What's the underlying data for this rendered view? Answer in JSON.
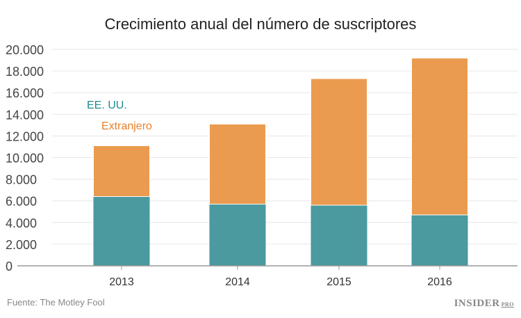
{
  "chart_data": {
    "type": "bar",
    "stacked": true,
    "title": "Crecimiento anual del número de suscriptores",
    "categories": [
      "2013",
      "2014",
      "2015",
      "2016"
    ],
    "series": [
      {
        "name": "EE. UU.",
        "color": "#4a9a9f",
        "values": [
          6400,
          5700,
          5600,
          4700
        ]
      },
      {
        "name": "Extranjero",
        "color": "#eb9b4f",
        "values": [
          4700,
          7400,
          11700,
          14500
        ]
      }
    ],
    "ylim": [
      0,
      20000
    ],
    "yticks": [
      0,
      2000,
      4000,
      6000,
      8000,
      10000,
      12000,
      14000,
      16000,
      18000,
      20000
    ],
    "ytick_labels": [
      "0",
      "2.000",
      "4.000",
      "6.000",
      "8.000",
      "10.000",
      "12.000",
      "14.000",
      "16.000",
      "18.000",
      "20.000"
    ],
    "grid": true,
    "legend_colors": {
      "EE. UU.": "#1f8a8f",
      "Extranjero": "#e8812a"
    }
  },
  "source": "Fuente: The Motley Fool",
  "logo": {
    "main": "INSIDER",
    "sub": "PRO"
  }
}
